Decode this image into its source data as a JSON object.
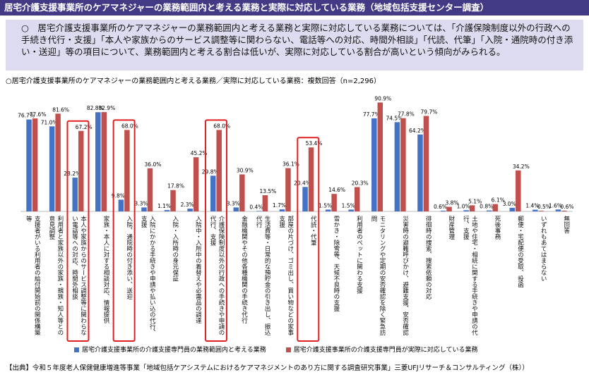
{
  "title": "居宅介護支援事業所のケアマネジャーの業務範囲内と考える業務と実際に対応している業務（地域包括支援センター調査）",
  "summary": "○　居宅介護支援事業所のケアマネジャーの業務範囲内と考える業務と実際に対応している業務については、「介護保険制度以外の行政への手続き代行・支援」「本人や家族からのサービス調整等に関わらない、電話等への対応、時間外相談」「代読、代筆」「入院・通院時の付き添い・送迎」等の項目について、業務範囲内と考える割合は低いが、実際に対応している割合が高いという傾向がみられる。",
  "source": "【出典】令和５年度老人保健健康増進等事業「地域包括ケアシステムにおけるケアマネジメントのあり方に関する調査研究事業」三菱UFJリサーチ＆コンサルティング（株））",
  "chart_data": {
    "type": "bar",
    "title": "○居宅介護支援事業所のケアマネジャーの業務範囲内と考える業務／実際に対応している業務：複数回答（n=2,296）",
    "categories": [
      "支援者がいる利用者の給付開始前の関係構築等",
      "利用者と家族以外の家族・親族・知人等との意見調整",
      "本人や家族からのサービス調整等に関わらない電話等への対応、時間外相談",
      "家族・本人に対する相談対応、情報提供",
      "入院、通院時の付き添い、送迎",
      "入院にかかる手続きや申請や払い込の代行、支援",
      "入院・入所時の身元保証",
      "入院中・入所中の着替えや必需品の調達",
      "介護保険制度以外の行政への手続きや申請の代行、支援",
      "金融機関やその他各種機関の手続き代行",
      "生活費等・日常的な預貯金の引き出し、振込代行",
      "部屋の片づけ、ゴミ出し、買い物などの家事支援",
      "代読・代筆",
      "雪かき・除雪等、天候不良時の支援",
      "利用者のペットに関わる支援",
      "モニタリングや定期の安否確認を除く緊急訪問",
      "災害時の避難呼びかけ、避難支援、安否確認",
      "徘徊時の捜索、捜索依頼の対応",
      "財産管理",
      "土地や住宅・相続に関する手続きや申請の代行、支援",
      "死後事務",
      "郵便・宅配便の受取、投函",
      "いずれもあてはまらない",
      "無回答"
    ],
    "series": [
      {
        "name": "居宅介護支援事業所の介護支援専門員の業務範囲内と考える業務",
        "color": "#4472c4",
        "values": [
          76.7,
          71.0,
          28.2,
          82.8,
          9.8,
          3.3,
          1.1,
          2.3,
          29.8,
          3.3,
          0.4,
          1.7,
          20.4,
          1.5,
          1.5,
          77.7,
          74.5,
          64.2,
          0.6,
          1.0,
          0.8,
          3.0,
          1.4,
          1.6
        ],
        "value_labels": [
          "76.7%",
          "71.0%",
          "28.2%",
          "82.8%",
          "9.8%",
          "3.3%",
          "1.1%",
          "2.3%",
          "29.8%",
          "3.3%",
          "0.4%",
          "1.7%",
          "20.4%",
          "1.5%",
          "1.5%",
          "77.7%",
          "74.5%",
          "64.2%",
          "0.6%",
          "1.0%",
          "0.8%",
          "3.0%",
          "1.4%",
          "1.6%"
        ]
      },
      {
        "name": "居宅介護支援事業所の介護支援専門員が実際に対応している業務",
        "color": "#c0504d",
        "values": [
          77.6,
          81.6,
          67.2,
          82.9,
          68.0,
          36.0,
          17.8,
          45.2,
          68.0,
          30.9,
          13.5,
          36.1,
          53.4,
          14.6,
          20.3,
          90.9,
          77.8,
          79.7,
          3.8,
          5.1,
          6.1,
          34.2,
          0.5,
          0.6
        ],
        "value_labels": [
          "77.6%",
          "81.6%",
          "67.2%",
          "82.9%",
          "68.0%",
          "36.0%",
          "17.8%",
          "45.2%",
          "68.0%",
          "30.9%",
          "13.5%",
          "36.1%",
          "53.4%",
          "14.6%",
          "20.3%",
          "90.9%",
          "77.8%",
          "79.7%",
          "3.8%",
          "5.1%",
          "6.1%",
          "34.2%",
          "0.5%",
          "0.6%"
        ]
      }
    ],
    "ylim": [
      0,
      100
    ],
    "highlighted_categories": [
      2,
      4,
      8,
      12
    ],
    "highlight_color": "#e02020"
  }
}
